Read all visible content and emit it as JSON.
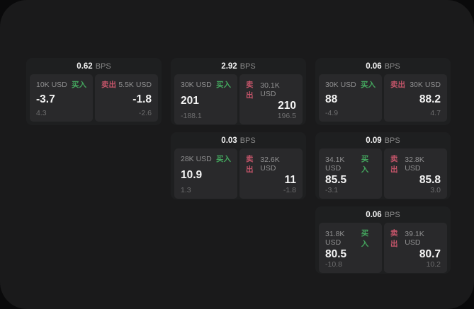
{
  "labels": {
    "bps_unit": "BPS",
    "buy": "买入",
    "sell": "卖出"
  },
  "colors": {
    "background_outer": "#0a0a0b",
    "background_panel": "#1a1a1b",
    "card": "#1e1f20",
    "sub_panel": "#29292b",
    "buy_accent": "#44a65e",
    "sell_accent": "#c5556a",
    "primary_text": "#f2f2f2",
    "secondary_text": "#909091",
    "muted_text": "#6d6d6e"
  },
  "cards": [
    {
      "bps": "0.62",
      "buy": {
        "notional": "10K USD",
        "price": "-3.7",
        "change": "4.3"
      },
      "sell": {
        "notional": "5.5K USD",
        "price": "-1.8",
        "change": "-2.6"
      }
    },
    {
      "bps": "2.92",
      "buy": {
        "notional": "30K USD",
        "price": "201",
        "change": "-188.1"
      },
      "sell": {
        "notional": "30.1K USD",
        "price": "210",
        "change": "196.5"
      }
    },
    {
      "bps": "0.06",
      "buy": {
        "notional": "30K USD",
        "price": "88",
        "change": "-4.9"
      },
      "sell": {
        "notional": "30K USD",
        "price": "88.2",
        "change": "4.7"
      }
    },
    {
      "bps": "0.03",
      "buy": {
        "notional": "28K USD",
        "price": "10.9",
        "change": "1.3"
      },
      "sell": {
        "notional": "32.6K USD",
        "price": "11",
        "change": "-1.8"
      }
    },
    {
      "bps": "0.09",
      "buy": {
        "notional": "34.1K USD",
        "price": "85.5",
        "change": "-3.1"
      },
      "sell": {
        "notional": "32.8K USD",
        "price": "85.8",
        "change": "3.0"
      }
    },
    {
      "bps": "0.06",
      "buy": {
        "notional": "31.8K USD",
        "price": "80.5",
        "change": "-10.8"
      },
      "sell": {
        "notional": "39.1K USD",
        "price": "80.7",
        "change": "10.2"
      }
    }
  ]
}
